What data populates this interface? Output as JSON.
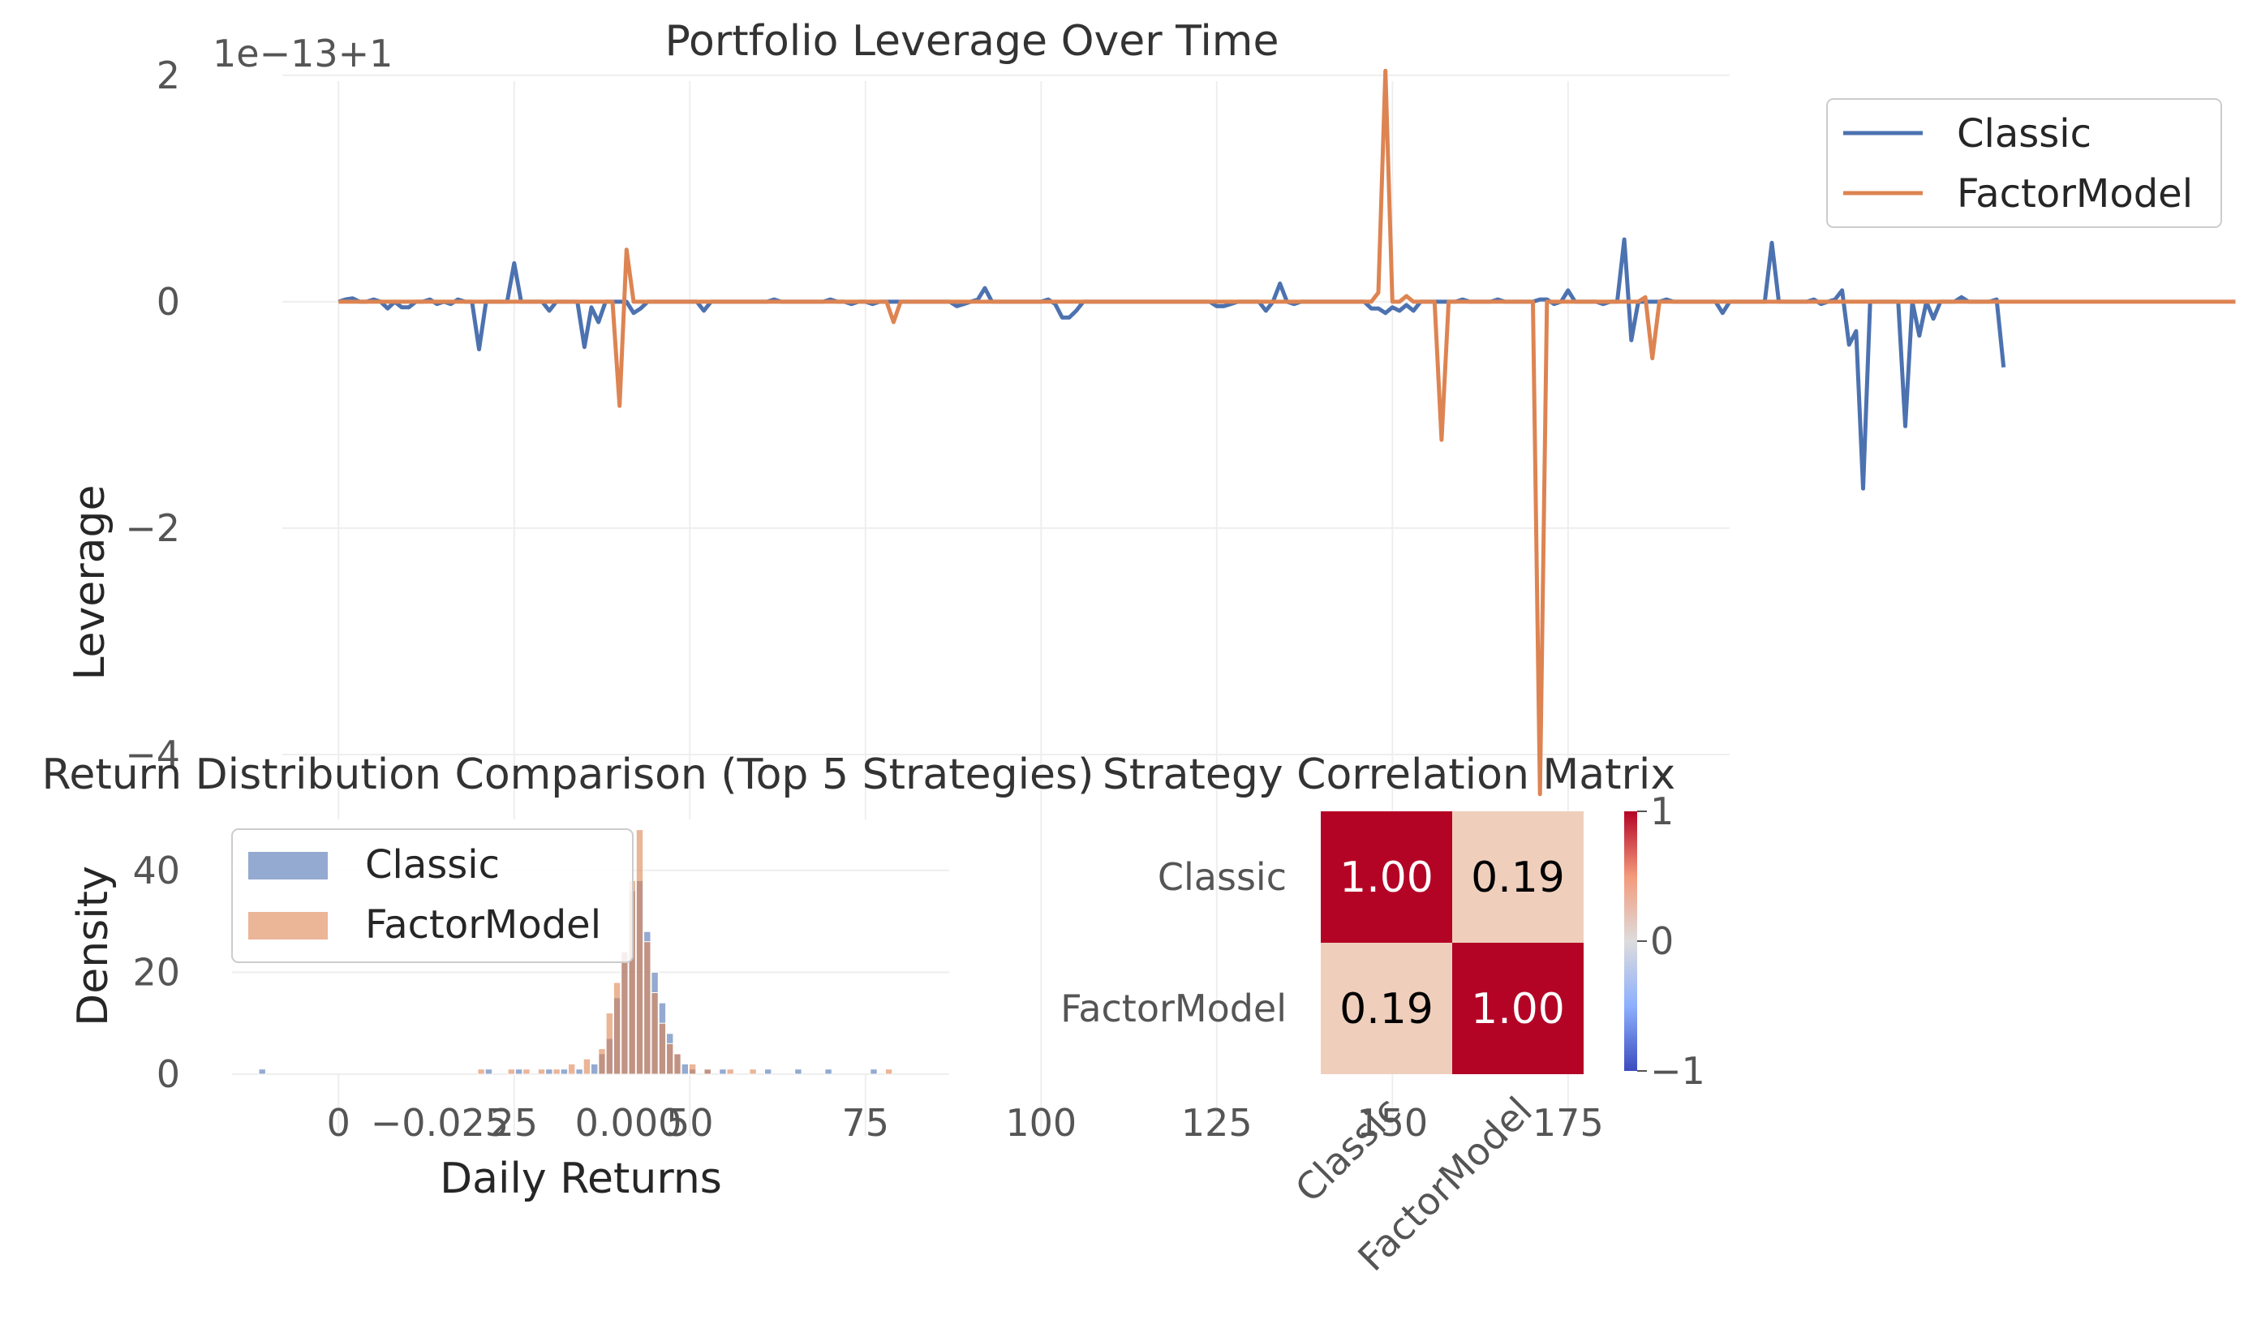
{
  "colors": {
    "classic": "#4c72b0",
    "factor": "#dd8452",
    "heat_high": "#b40426",
    "heat_low": "#efcfbc"
  },
  "chart_data": [
    {
      "type": "line",
      "title": "Portfolio Leverage Over Time",
      "xlabel": "",
      "ylabel": "Leverage",
      "offset_text": "1e−13+1",
      "y_scale_note": "values shown as (leverage − 1) × 1e13",
      "xlim": [
        -8,
        198
      ],
      "ylim": [
        -4.0,
        2.45
      ],
      "x_ticks": [
        0,
        25,
        50,
        75,
        100,
        125,
        150,
        175
      ],
      "x_tick_labels": [
        "0",
        "25",
        "50",
        "75",
        "100",
        "125",
        "150",
        "175"
      ],
      "y_ticks": [
        2,
        0,
        -2,
        -4
      ],
      "y_tick_labels": [
        "2",
        "0",
        "−2",
        "−4"
      ],
      "legend": "outside top-right",
      "grid": true,
      "series": [
        {
          "name": "Classic",
          "color": "#4c72b0",
          "values": [
            0,
            0.02,
            0.03,
            0,
            0,
            0.02,
            0,
            -0.06,
            0,
            -0.05,
            -0.05,
            0,
            0,
            0.02,
            -0.02,
            0,
            -0.02,
            0.02,
            0,
            0,
            -0.42,
            0,
            0,
            0,
            0,
            0.34,
            0,
            0,
            0,
            0,
            -0.08,
            0,
            0,
            0,
            0,
            -0.4,
            -0.05,
            -0.18,
            0,
            0,
            0,
            0,
            -0.1,
            -0.06,
            0,
            0,
            0,
            0,
            0,
            0,
            0,
            0,
            -0.08,
            0,
            0,
            0,
            0,
            0,
            0,
            0,
            0,
            0,
            0.02,
            0,
            0,
            0,
            0,
            0,
            0,
            0,
            0.02,
            0,
            0,
            -0.02,
            0,
            0,
            -0.02,
            0,
            0,
            0,
            0,
            0,
            0,
            0,
            0,
            0,
            0,
            0,
            -0.04,
            -0.02,
            0,
            0.02,
            0.12,
            0,
            0,
            0,
            0,
            0,
            0,
            0,
            0,
            0.02,
            -0.02,
            -0.14,
            -0.14,
            -0.08,
            0,
            0,
            0,
            0,
            0,
            0,
            0,
            0,
            0,
            0,
            0,
            0,
            0,
            0,
            0,
            0,
            0,
            0,
            0,
            -0.04,
            -0.04,
            -0.02,
            0,
            0,
            0,
            0,
            -0.08,
            0,
            0.16,
            0,
            -0.02,
            0,
            0,
            0,
            0,
            0,
            0,
            0,
            0,
            0,
            0,
            -0.06,
            -0.06,
            -0.1,
            -0.05,
            -0.08,
            -0.03,
            -0.08,
            0,
            0,
            0,
            0,
            0,
            0,
            0.02,
            0,
            0,
            0,
            0,
            0.02,
            0,
            0,
            0,
            0,
            0,
            0.02,
            0.02,
            -0.02,
            0,
            0.1,
            0,
            0,
            0,
            0,
            -0.02,
            0,
            0,
            0.55,
            -0.34,
            0,
            0,
            0,
            0,
            0.02,
            0,
            0,
            0,
            0,
            0,
            0,
            0,
            -0.1,
            0,
            0,
            0,
            0,
            0,
            0,
            0.52,
            0,
            0,
            0,
            0,
            0,
            0.02,
            -0.02,
            0,
            0.02,
            0.1,
            -0.38,
            -0.26,
            -1.65,
            0,
            0,
            0,
            0,
            0,
            -1.1,
            0,
            -0.3,
            0,
            -0.15,
            0,
            0,
            0,
            0.04,
            0,
            0,
            0,
            0,
            0.02,
            -0.58
          ]
        },
        {
          "name": "FactorModel",
          "color": "#dd8452",
          "values": [
            0,
            0,
            0,
            0,
            0,
            0,
            0,
            0,
            0,
            0,
            0,
            0,
            0,
            0,
            0,
            0,
            0,
            0,
            0,
            0,
            0,
            0,
            0,
            0,
            0,
            0,
            0,
            0,
            0,
            0,
            0,
            0,
            0,
            0,
            0,
            0,
            0,
            0,
            0,
            0,
            0,
            0,
            0,
            0,
            0,
            0,
            0,
            0,
            0,
            0,
            0,
            0,
            0,
            0,
            0,
            0,
            0,
            0,
            0,
            0,
            0,
            0,
            0,
            0,
            0,
            0,
            0,
            0,
            0,
            0,
            0,
            0,
            0,
            0,
            0,
            0,
            0,
            0,
            0,
            0,
            0,
            0,
            0,
            0,
            0,
            0,
            0,
            0,
            0,
            0,
            0,
            0,
            0,
            0,
            0,
            0,
            0,
            0,
            0,
            0,
            0,
            0,
            0,
            0,
            0,
            0,
            0,
            0,
            0,
            0,
            0,
            0,
            0,
            0,
            0,
            0,
            0,
            0,
            0,
            0,
            0,
            0,
            0,
            0,
            0,
            0,
            0,
            0,
            0,
            0,
            0,
            0,
            0,
            0,
            0,
            0,
            0,
            0,
            0,
            0,
            0,
            0,
            0,
            0,
            0,
            0,
            0,
            0,
            0,
            0,
            0,
            0,
            0,
            0,
            0,
            0,
            0,
            0,
            0,
            0,
            0,
            0,
            0,
            0,
            0,
            0,
            0,
            0,
            0,
            0,
            0,
            0,
            0,
            0,
            0,
            0,
            0,
            0,
            0,
            0,
            0,
            0,
            0,
            0,
            0,
            0,
            0,
            0,
            0,
            0,
            0,
            0,
            0,
            0,
            0,
            0,
            0,
            0,
            0,
            0,
            0,
            0,
            0,
            0,
            0,
            0,
            0,
            0,
            0,
            0,
            0,
            0,
            0,
            0,
            0,
            0,
            0,
            0,
            0,
            0,
            0,
            0,
            0,
            0,
            0,
            0,
            0,
            0,
            0,
            0,
            0,
            0,
            0,
            0,
            0,
            0,
            0,
            0,
            0,
            0,
            0,
            0,
            0,
            0,
            0,
            0,
            0,
            0,
            0,
            0,
            0,
            0,
            0,
            0,
            0,
            0,
            0,
            0,
            0,
            0,
            0,
            0,
            0,
            0,
            0,
            0,
            0,
            0,
            0,
            0,
            0
          ],
          "spikes": [
            [
              40,
              -0.92
            ],
            [
              41,
              0.46
            ],
            [
              79,
              -0.18
            ],
            [
              148,
              0.08
            ],
            [
              149,
              2.04
            ],
            [
              152,
              0.05
            ],
            [
              157,
              -1.22
            ],
            [
              171,
              -4.35
            ],
            [
              186,
              0.04
            ],
            [
              187,
              -0.5
            ]
          ]
        }
      ]
    },
    {
      "type": "histogram",
      "title": "Return Distribution Comparison (Top 5 Strategies)",
      "xlabel": "Daily Returns",
      "ylabel": "Density",
      "xlim": [
        -0.0525,
        0.0425
      ],
      "ylim": [
        0,
        50
      ],
      "x_ticks": [
        -0.025,
        0.0
      ],
      "x_tick_labels": [
        "−0.025",
        "0.000"
      ],
      "y_ticks": [
        0,
        20,
        40
      ],
      "y_tick_labels": [
        "0",
        "20",
        "40"
      ],
      "legend": "upper left",
      "series": [
        {
          "name": "Classic",
          "color": "#4c72b0",
          "bins": [
            [
              -0.0485,
              1
            ],
            [
              -0.0185,
              1
            ],
            [
              -0.0145,
              1
            ],
            [
              -0.0105,
              1
            ],
            [
              -0.0085,
              1
            ],
            [
              -0.0065,
              1
            ],
            [
              -0.0045,
              2
            ],
            [
              -0.0035,
              4
            ],
            [
              -0.0025,
              7
            ],
            [
              -0.0015,
              15
            ],
            [
              -0.0005,
              24
            ],
            [
              0.0005,
              36
            ],
            [
              0.0015,
              38
            ],
            [
              0.0025,
              28
            ],
            [
              0.0035,
              20
            ],
            [
              0.0045,
              14
            ],
            [
              0.0055,
              8
            ],
            [
              0.0065,
              4
            ],
            [
              0.0075,
              2
            ],
            [
              0.0085,
              1
            ],
            [
              0.0105,
              1
            ],
            [
              0.0125,
              1
            ],
            [
              0.0185,
              1
            ],
            [
              0.0225,
              1
            ],
            [
              0.0265,
              1
            ],
            [
              0.0325,
              1
            ]
          ]
        },
        {
          "name": "FactorModel",
          "color": "#dd8452",
          "bins": [
            [
              -0.0195,
              1
            ],
            [
              -0.0155,
              1
            ],
            [
              -0.0135,
              1
            ],
            [
              -0.0115,
              1
            ],
            [
              -0.0095,
              1
            ],
            [
              -0.0075,
              2
            ],
            [
              -0.0055,
              3
            ],
            [
              -0.0035,
              5
            ],
            [
              -0.0025,
              12
            ],
            [
              -0.0015,
              18
            ],
            [
              -0.0005,
              24
            ],
            [
              0.0005,
              38
            ],
            [
              0.0015,
              48
            ],
            [
              0.0025,
              26
            ],
            [
              0.0035,
              16
            ],
            [
              0.0045,
              10
            ],
            [
              0.0055,
              6
            ],
            [
              0.0065,
              4
            ],
            [
              0.0085,
              2
            ],
            [
              0.0105,
              1
            ],
            [
              0.0135,
              1
            ],
            [
              0.0165,
              1
            ],
            [
              0.0345,
              1
            ]
          ]
        }
      ]
    },
    {
      "type": "heatmap",
      "title": "Strategy Correlation Matrix",
      "rows": [
        "Classic",
        "FactorModel"
      ],
      "cols": [
        "Classic",
        "FactorModel"
      ],
      "values": [
        [
          1.0,
          0.19
        ],
        [
          0.19,
          1.0
        ]
      ],
      "cell_labels": [
        [
          "1.00",
          "0.19"
        ],
        [
          "0.19",
          "1.00"
        ]
      ],
      "colormap": "coolwarm",
      "colorbar_ticks": [
        1,
        0,
        -1
      ],
      "colorbar_tick_labels": [
        "1",
        "0",
        "−1"
      ]
    }
  ]
}
